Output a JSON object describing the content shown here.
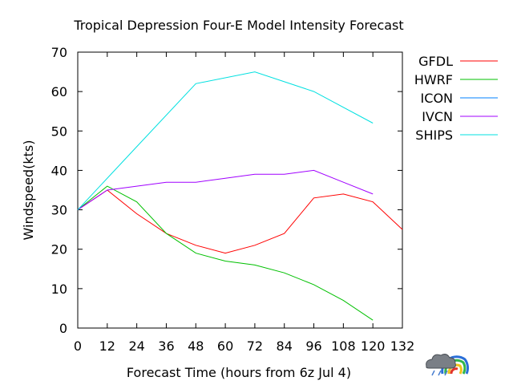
{
  "chart_data": {
    "type": "line",
    "title": "Tropical Depression Four-E Model Intensity Forecast",
    "xlabel": "Forecast Time (hours from 6z Jul 4)",
    "ylabel": "Windspeed(kts)",
    "xlim": [
      0,
      132
    ],
    "ylim": [
      0,
      70
    ],
    "xticks": [
      0,
      12,
      24,
      36,
      48,
      60,
      72,
      84,
      96,
      108,
      120,
      132
    ],
    "yticks": [
      0,
      10,
      20,
      30,
      40,
      50,
      60,
      70
    ],
    "grid": false,
    "legend": "right",
    "series": [
      {
        "name": "GFDL",
        "color": "#ff0000",
        "x": [
          0,
          12,
          24,
          36,
          48,
          60,
          72,
          84,
          96,
          108,
          120,
          132
        ],
        "y": [
          30,
          35,
          29,
          24,
          21,
          19,
          21,
          24,
          33,
          34,
          32,
          25
        ]
      },
      {
        "name": "HWRF",
        "color": "#00c000",
        "x": [
          0,
          12,
          24,
          36,
          48,
          60,
          72,
          84,
          96,
          108,
          120
        ],
        "y": [
          30,
          36,
          32,
          24,
          19,
          17,
          16,
          14,
          11,
          7,
          2
        ]
      },
      {
        "name": "ICON",
        "color": "#0080ff",
        "x": [],
        "y": []
      },
      {
        "name": "IVCN",
        "color": "#a000ff",
        "x": [
          0,
          12,
          24,
          36,
          48,
          60,
          72,
          84,
          96,
          108,
          120
        ],
        "y": [
          30,
          35,
          36,
          37,
          37,
          38,
          39,
          39,
          40,
          37,
          34
        ]
      },
      {
        "name": "SHIPS",
        "color": "#00e0e0",
        "x": [
          0,
          24,
          48,
          72,
          96,
          120
        ],
        "y": [
          30,
          46,
          62,
          65,
          60,
          52
        ]
      }
    ]
  }
}
